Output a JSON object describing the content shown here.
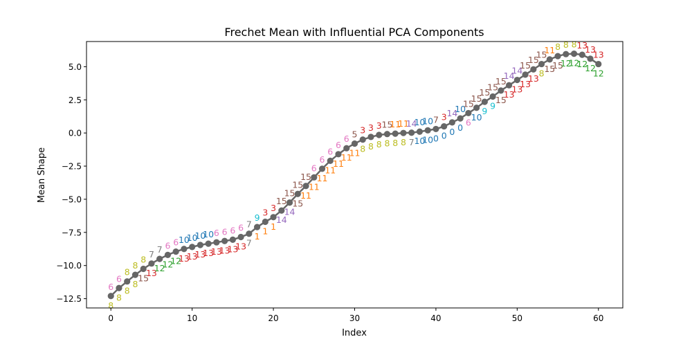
{
  "chart_data": {
    "type": "line",
    "title": "Frechet Mean with Influential PCA Components",
    "xlabel": "Index",
    "ylabel": "Mean Shape",
    "xlim": [
      -3,
      63
    ],
    "ylim": [
      -13.2,
      6.9
    ],
    "xticks": [
      0,
      10,
      20,
      30,
      40,
      50,
      60
    ],
    "xtick_labels": [
      "0",
      "10",
      "20",
      "30",
      "40",
      "50",
      "60"
    ],
    "yticks": [
      -12.5,
      -10.0,
      -7.5,
      -5.0,
      -2.5,
      0.0,
      2.5,
      5.0
    ],
    "ytick_labels": [
      "−12.5",
      "−10.0",
      "−7.5",
      "−5.0",
      "−2.5",
      "0.0",
      "2.5",
      "5.0"
    ],
    "grid": false,
    "line_color": "#666666",
    "series": [
      {
        "x": [
          0,
          1,
          2,
          3,
          4,
          5,
          6,
          7,
          8,
          9,
          10,
          11,
          12,
          13,
          14,
          15,
          16,
          17,
          18,
          19,
          20,
          21,
          22,
          23,
          24,
          25,
          26,
          27,
          28,
          29,
          30,
          31,
          32,
          33,
          34,
          35,
          36,
          37,
          38,
          39,
          40,
          41,
          42,
          43,
          44,
          45,
          46,
          47,
          48,
          49,
          50,
          51,
          52,
          53,
          54,
          55,
          56,
          57,
          58,
          59,
          60
        ],
        "values": [
          -12.3,
          -11.7,
          -11.2,
          -10.7,
          -10.25,
          -9.85,
          -9.5,
          -9.2,
          -8.95,
          -8.75,
          -8.6,
          -8.45,
          -8.35,
          -8.25,
          -8.15,
          -8.05,
          -7.85,
          -7.6,
          -7.1,
          -6.7,
          -6.35,
          -5.85,
          -5.25,
          -4.6,
          -4.0,
          -3.35,
          -2.7,
          -2.1,
          -1.6,
          -1.15,
          -0.8,
          -0.5,
          -0.3,
          -0.15,
          -0.08,
          -0.05,
          0.0,
          0.02,
          0.1,
          0.2,
          0.3,
          0.5,
          0.8,
          1.1,
          1.5,
          1.9,
          2.35,
          2.75,
          3.2,
          3.6,
          4.0,
          4.4,
          4.8,
          5.2,
          5.55,
          5.8,
          5.95,
          5.98,
          5.9,
          5.6,
          5.2
        ]
      }
    ],
    "upper_labels": [
      "6",
      "6",
      "8",
      "8",
      "8",
      "7",
      "7",
      "6",
      "6",
      "10",
      "10",
      "10",
      "10",
      "6",
      "6",
      "6",
      "6",
      "7",
      "9",
      "3",
      "3",
      "15",
      "15",
      "15",
      "15",
      "6",
      "6",
      "6",
      "6",
      "6",
      "5",
      "3",
      "3",
      "3",
      "15",
      "11",
      "11",
      "14",
      "10",
      "10",
      "7",
      "3",
      "14",
      "10",
      "15",
      "15",
      "15",
      "15",
      "15",
      "14",
      "14",
      "15",
      "15",
      "15",
      "11",
      "8",
      "8",
      "8",
      "13",
      "13",
      "13"
    ],
    "upper_colors": [
      "#e377c2",
      "#e377c2",
      "#bcbd22",
      "#bcbd22",
      "#bcbd22",
      "#7f7f7f",
      "#7f7f7f",
      "#e377c2",
      "#e377c2",
      "#1f77b4",
      "#1f77b4",
      "#1f77b4",
      "#1f77b4",
      "#e377c2",
      "#e377c2",
      "#e377c2",
      "#e377c2",
      "#7f7f7f",
      "#17becf",
      "#d62728",
      "#d62728",
      "#8c564b",
      "#8c564b",
      "#8c564b",
      "#8c564b",
      "#e377c2",
      "#e377c2",
      "#e377c2",
      "#e377c2",
      "#e377c2",
      "#8c564b",
      "#d62728",
      "#d62728",
      "#d62728",
      "#8c564b",
      "#ff7f0e",
      "#ff7f0e",
      "#9467bd",
      "#1f77b4",
      "#1f77b4",
      "#8c564b",
      "#d62728",
      "#9467bd",
      "#1f77b4",
      "#8c564b",
      "#8c564b",
      "#8c564b",
      "#8c564b",
      "#8c564b",
      "#9467bd",
      "#9467bd",
      "#8c564b",
      "#8c564b",
      "#8c564b",
      "#ff7f0e",
      "#bcbd22",
      "#bcbd22",
      "#bcbd22",
      "#d62728",
      "#d62728",
      "#d62728"
    ],
    "lower_labels": [
      "8",
      "8",
      "8",
      "8",
      "15",
      "13",
      "12",
      "12",
      "12",
      "13",
      "13",
      "13",
      "13",
      "13",
      "13",
      "13",
      "13",
      "7",
      "1",
      "1",
      "1",
      "14",
      "14",
      "15",
      "11",
      "11",
      "11",
      "11",
      "11",
      "11",
      "11",
      "8",
      "8",
      "8",
      "8",
      "8",
      "8",
      "7",
      "10",
      "10",
      "0",
      "0",
      "0",
      "0",
      "6",
      "10",
      "9",
      "9",
      "15",
      "13",
      "13",
      "13",
      "13",
      "8",
      "15",
      "15",
      "12",
      "12",
      "12",
      "12",
      "12"
    ],
    "lower_colors": [
      "#bcbd22",
      "#bcbd22",
      "#bcbd22",
      "#bcbd22",
      "#8c564b",
      "#d62728",
      "#2ca02c",
      "#2ca02c",
      "#2ca02c",
      "#d62728",
      "#d62728",
      "#d62728",
      "#d62728",
      "#d62728",
      "#d62728",
      "#d62728",
      "#d62728",
      "#7f7f7f",
      "#ff7f0e",
      "#ff7f0e",
      "#ff7f0e",
      "#9467bd",
      "#9467bd",
      "#8c564b",
      "#ff7f0e",
      "#ff7f0e",
      "#ff7f0e",
      "#ff7f0e",
      "#ff7f0e",
      "#ff7f0e",
      "#ff7f0e",
      "#bcbd22",
      "#bcbd22",
      "#bcbd22",
      "#bcbd22",
      "#bcbd22",
      "#bcbd22",
      "#7f7f7f",
      "#1f77b4",
      "#1f77b4",
      "#1f77b4",
      "#1f77b4",
      "#1f77b4",
      "#1f77b4",
      "#e377c2",
      "#1f77b4",
      "#17becf",
      "#17becf",
      "#8c564b",
      "#d62728",
      "#d62728",
      "#d62728",
      "#d62728",
      "#bcbd22",
      "#8c564b",
      "#8c564b",
      "#2ca02c",
      "#2ca02c",
      "#2ca02c",
      "#2ca02c",
      "#2ca02c"
    ]
  }
}
